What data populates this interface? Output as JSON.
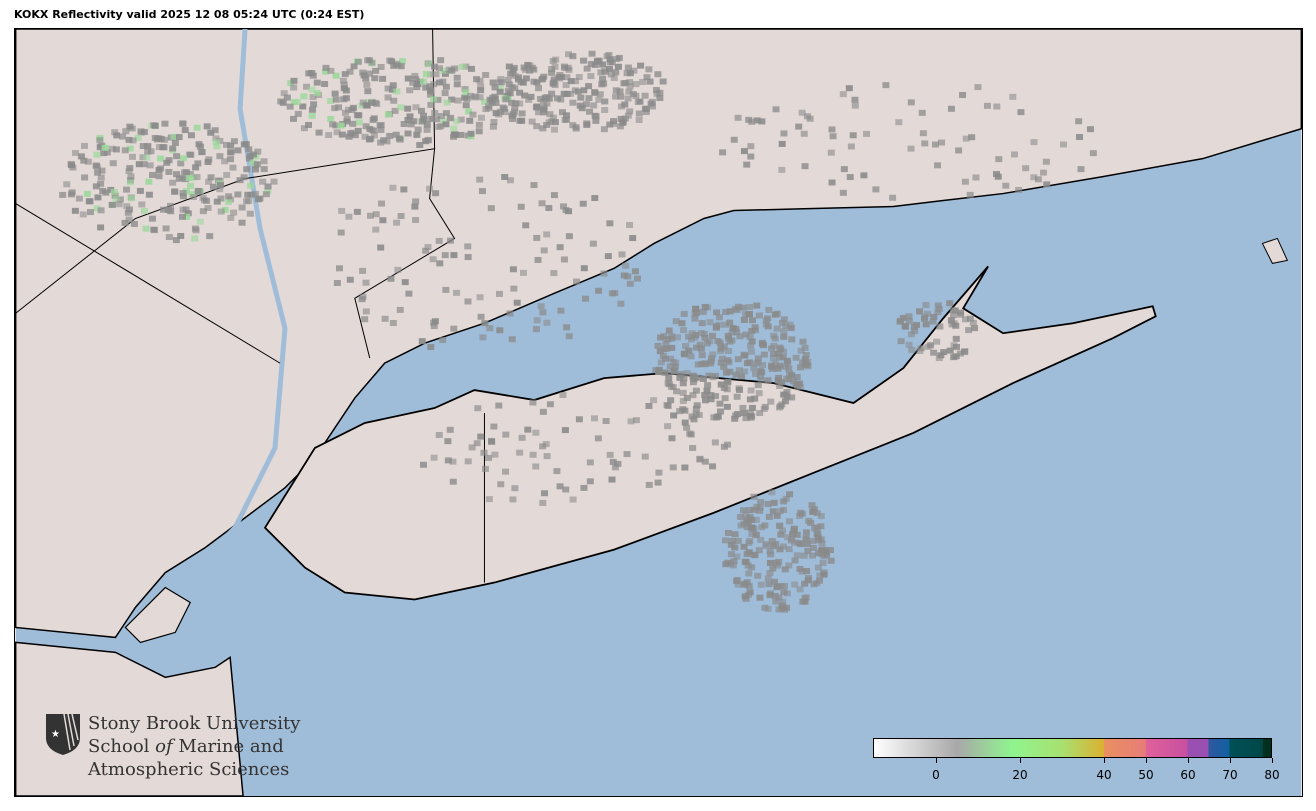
{
  "title": "KOKX Reflectivity valid 2025 12 08 05:24 UTC (0:24 EST)",
  "colors": {
    "ocean": "#9fbcd8",
    "land": "#e3d9d7",
    "border": "#000000",
    "echo": "#8a8a8a"
  },
  "logo": {
    "line1": "Stony Brook University",
    "line2a": "School ",
    "line2b": "of",
    "line2c": " Marine and",
    "line3": "Atmospheric Sciences",
    "icon": "star-shield-icon"
  },
  "colorbar": {
    "min": -15,
    "max": 80,
    "units_label": "",
    "ticks": [
      "0",
      "20",
      "40",
      "50",
      "60",
      "70",
      "80"
    ],
    "tick_values": [
      0,
      20,
      40,
      50,
      60,
      70,
      80
    ],
    "stops": [
      {
        "v": -15,
        "c": "#ffffff"
      },
      {
        "v": 5,
        "c": "#a8a8a8"
      },
      {
        "v": 18,
        "c": "#8ff58f"
      },
      {
        "v": 30,
        "c": "#a8e070"
      },
      {
        "v": 40,
        "c": "#dcb030"
      },
      {
        "v": 40.1,
        "c": "#e89060"
      },
      {
        "v": 50,
        "c": "#e87c78"
      },
      {
        "v": 50.1,
        "c": "#e0609a"
      },
      {
        "v": 60,
        "c": "#c850a0"
      },
      {
        "v": 60.1,
        "c": "#9a50b0"
      },
      {
        "v": 65,
        "c": "#9a50b0"
      },
      {
        "v": 65.1,
        "c": "#3058a0"
      },
      {
        "v": 70,
        "c": "#1060a0"
      },
      {
        "v": 70.1,
        "c": "#005058"
      },
      {
        "v": 78,
        "c": "#004848"
      },
      {
        "v": 78.1,
        "c": "#003020"
      },
      {
        "v": 80,
        "c": "#003020"
      }
    ]
  }
}
